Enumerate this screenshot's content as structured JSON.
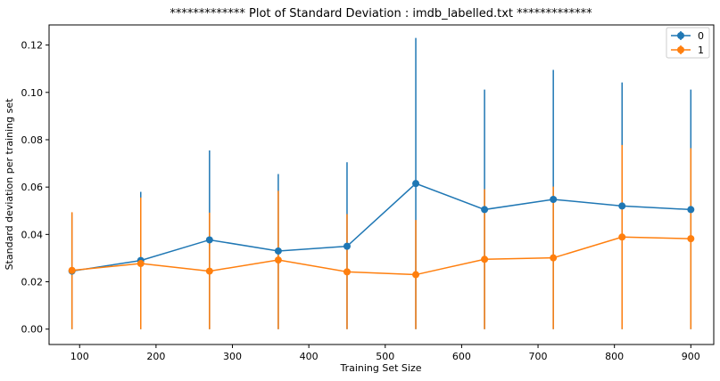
{
  "chart_data": {
    "type": "line",
    "title": "************* Plot of Standard Deviation : imdb_labelled.txt *************",
    "xlabel": "Training Set Size",
    "ylabel": "Standard deviation per training set",
    "xlim": [
      60,
      930
    ],
    "ylim": [
      -0.0065,
      0.1285
    ],
    "xticks": [
      100,
      200,
      300,
      400,
      500,
      600,
      700,
      800,
      900
    ],
    "xtick_labels": [
      "100",
      "200",
      "300",
      "400",
      "500",
      "600",
      "700",
      "800",
      "900"
    ],
    "yticks": [
      0.0,
      0.02,
      0.04,
      0.06,
      0.08,
      0.1,
      0.12
    ],
    "ytick_labels": [
      "0.00",
      "0.02",
      "0.04",
      "0.06",
      "0.08",
      "0.10",
      "0.12"
    ],
    "grid": false,
    "legend_position": "top-right",
    "x": [
      90,
      180,
      270,
      360,
      450,
      540,
      630,
      720,
      810,
      900
    ],
    "series": [
      {
        "name": "0",
        "color": "#1f77b4",
        "values": [
          0.0245,
          0.029,
          0.0377,
          0.033,
          0.035,
          0.0615,
          0.0505,
          0.0548,
          0.052,
          0.0505
        ],
        "error_low": [
          0.0,
          0.0,
          0.0,
          0.0,
          0.0,
          0.0,
          0.0,
          0.0,
          0.0,
          0.0
        ],
        "error_high": [
          0.049,
          0.058,
          0.0755,
          0.0655,
          0.0705,
          0.123,
          0.1012,
          0.1095,
          0.1042,
          0.1012
        ]
      },
      {
        "name": "1",
        "color": "#ff7f0e",
        "values": [
          0.0248,
          0.0277,
          0.0245,
          0.0292,
          0.0242,
          0.023,
          0.0295,
          0.0301,
          0.0389,
          0.0382
        ],
        "error_low": [
          0.0,
          0.0,
          0.0,
          0.0,
          0.0,
          0.0,
          0.0,
          0.0,
          0.0,
          0.0
        ],
        "error_high": [
          0.0494,
          0.0556,
          0.0492,
          0.0584,
          0.0486,
          0.0461,
          0.0591,
          0.0602,
          0.0778,
          0.0764
        ]
      }
    ]
  }
}
